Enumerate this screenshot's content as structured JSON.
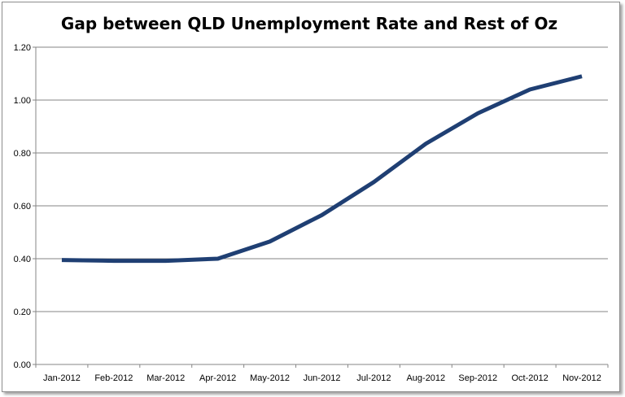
{
  "chart_data": {
    "type": "line",
    "title": "Gap between QLD Unemployment Rate and Rest of Oz",
    "categories": [
      "Jan-2012",
      "Feb-2012",
      "Mar-2012",
      "Apr-2012",
      "May-2012",
      "Jun-2012",
      "Jul-2012",
      "Aug-2012",
      "Sep-2012",
      "Oct-2012",
      "Nov-2012"
    ],
    "series": [
      {
        "values": [
          0.395,
          0.392,
          0.392,
          0.4,
          0.465,
          0.565,
          0.69,
          0.835,
          0.95,
          1.04,
          1.09
        ]
      }
    ],
    "ylim": [
      0,
      1.2
    ],
    "yticks": [
      "0.00",
      "0.20",
      "0.40",
      "0.60",
      "0.80",
      "1.00",
      "1.20"
    ],
    "grid": true,
    "legend": "none",
    "line_color": "#1f3f73"
  }
}
